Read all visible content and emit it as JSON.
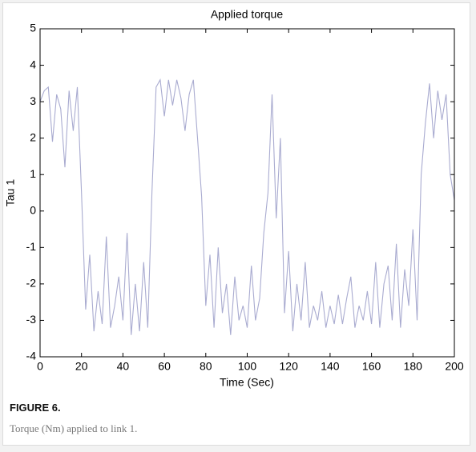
{
  "chart_data": {
    "type": "line",
    "title": "Applied torque",
    "x_label": "Time (Sec)",
    "y_label": "Tau 1",
    "x": [
      0,
      2,
      4,
      6,
      8,
      10,
      12,
      14,
      16,
      18,
      20,
      22,
      24,
      26,
      28,
      30,
      32,
      34,
      36,
      38,
      40,
      42,
      44,
      46,
      48,
      50,
      52,
      54,
      56,
      58,
      60,
      62,
      64,
      66,
      68,
      70,
      72,
      74,
      76,
      78,
      80,
      82,
      84,
      86,
      88,
      90,
      92,
      94,
      96,
      98,
      100,
      102,
      104,
      106,
      108,
      110,
      112,
      114,
      116,
      118,
      120,
      122,
      124,
      126,
      128,
      130,
      132,
      134,
      136,
      138,
      140,
      142,
      144,
      146,
      148,
      150,
      152,
      154,
      156,
      158,
      160,
      162,
      164,
      166,
      168,
      170,
      172,
      174,
      176,
      178,
      180,
      182,
      184,
      186,
      188,
      190,
      192,
      194,
      196,
      198,
      200
    ],
    "values": [
      3.0,
      3.3,
      3.4,
      1.9,
      3.2,
      2.8,
      1.2,
      3.3,
      2.2,
      3.4,
      0.5,
      -2.7,
      -1.2,
      -3.3,
      -2.2,
      -3.1,
      -0.7,
      -3.2,
      -2.6,
      -1.8,
      -3.0,
      -0.6,
      -3.4,
      -2.0,
      -3.3,
      -1.4,
      -3.2,
      0.5,
      3.4,
      3.6,
      2.6,
      3.6,
      2.9,
      3.6,
      3.1,
      2.2,
      3.2,
      3.6,
      2.0,
      0.4,
      -2.6,
      -1.2,
      -3.2,
      -1.0,
      -2.8,
      -2.0,
      -3.4,
      -1.8,
      -3.0,
      -2.6,
      -3.2,
      -1.5,
      -3.0,
      -2.4,
      -0.6,
      0.5,
      3.2,
      -0.2,
      2.0,
      -2.8,
      -1.1,
      -3.3,
      -2.0,
      -3.0,
      -1.4,
      -3.2,
      -2.6,
      -3.0,
      -2.2,
      -3.2,
      -2.6,
      -3.1,
      -2.3,
      -3.1,
      -2.4,
      -1.8,
      -3.2,
      -2.6,
      -3.0,
      -2.2,
      -3.1,
      -1.4,
      -3.2,
      -2.0,
      -1.5,
      -3.0,
      -0.9,
      -3.2,
      -1.6,
      -2.6,
      -0.5,
      -3.0,
      1.0,
      2.4,
      3.5,
      2.0,
      3.3,
      2.5,
      3.2,
      1.0,
      0.3
    ],
    "color": "#a9abd0",
    "xlim": [
      0,
      200
    ],
    "xticks": [
      0,
      20,
      40,
      60,
      80,
      100,
      120,
      140,
      160,
      180,
      200
    ],
    "ylim": [
      -4,
      5
    ],
    "yticks": [
      -4,
      -3,
      -2,
      -1,
      0,
      1,
      2,
      3,
      4,
      5
    ]
  },
  "caption": {
    "label": "FIGURE 6.",
    "text": "Torque (Nm) applied to link 1."
  }
}
